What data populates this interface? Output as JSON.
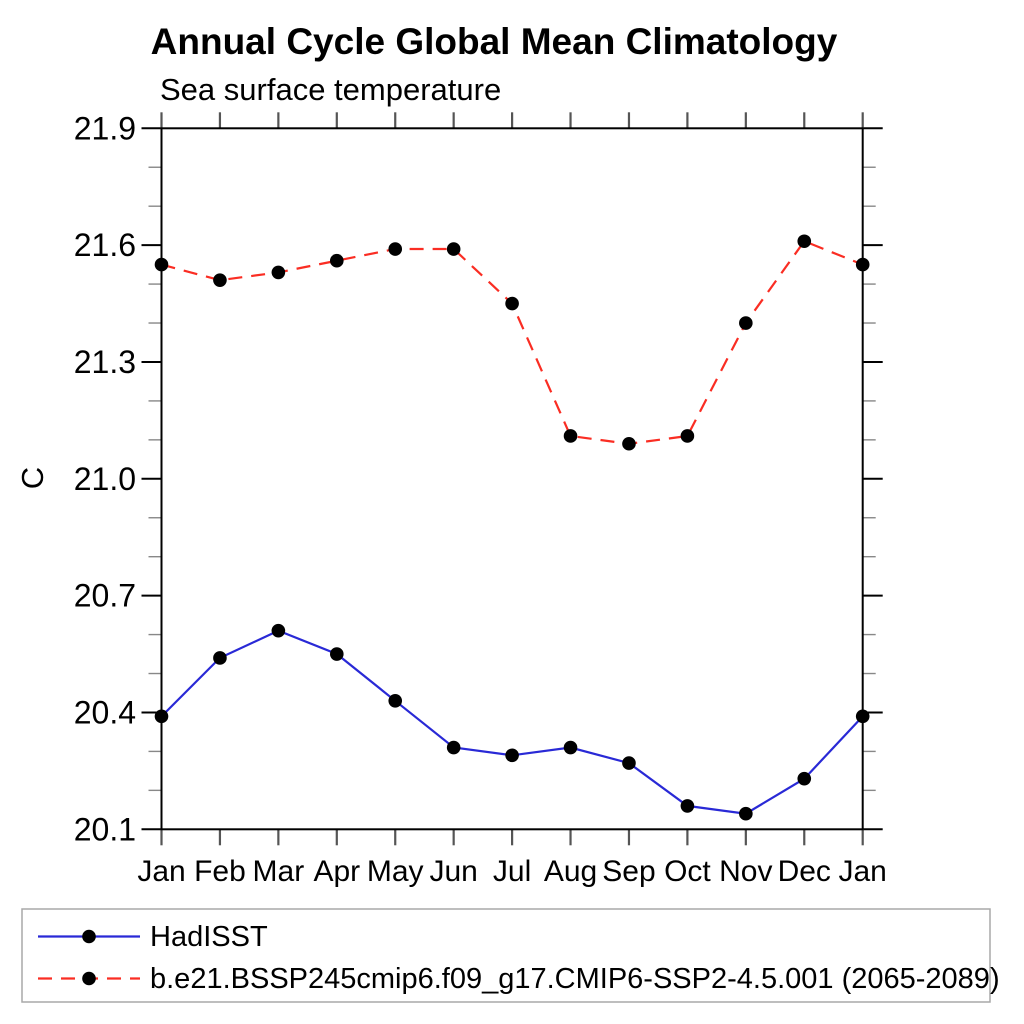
{
  "chart_data": {
    "type": "line",
    "title": "Annual Cycle Global Mean Climatology",
    "subtitle": "Sea surface temperature",
    "ylabel": "C",
    "xlabel": "",
    "x_categories": [
      "Jan",
      "Feb",
      "Mar",
      "Apr",
      "May",
      "Jun",
      "Jul",
      "Aug",
      "Sep",
      "Oct",
      "Nov",
      "Dec",
      "Jan"
    ],
    "ylim": [
      20.1,
      21.9
    ],
    "ytick_labels": [
      "20.1",
      "20.4",
      "20.7",
      "21.0",
      "21.3",
      "21.6",
      "21.9"
    ],
    "ytick_values": [
      20.1,
      20.4,
      20.7,
      21.0,
      21.3,
      21.6,
      21.9
    ],
    "ytick_minor_step": 0.1,
    "grid": false,
    "legend_position": "bottom-left-box",
    "series": [
      {
        "name": "HadISST",
        "color": "#2929d6",
        "line_style": "solid",
        "marker": "filled-circle",
        "marker_color": "#000000",
        "values": [
          20.39,
          20.54,
          20.61,
          20.55,
          20.43,
          20.31,
          20.29,
          20.31,
          20.27,
          20.16,
          20.14,
          20.23,
          20.39
        ]
      },
      {
        "name": "b.e21.BSSP245cmip6.f09_g17.CMIP6-SSP2-4.5.001 (2065-2089)",
        "color": "#fa2d23",
        "line_style": "dashed",
        "marker": "filled-circle",
        "marker_color": "#000000",
        "values": [
          21.55,
          21.51,
          21.53,
          21.56,
          21.59,
          21.59,
          21.45,
          21.11,
          21.09,
          21.11,
          21.4,
          21.61,
          21.55
        ]
      }
    ]
  }
}
